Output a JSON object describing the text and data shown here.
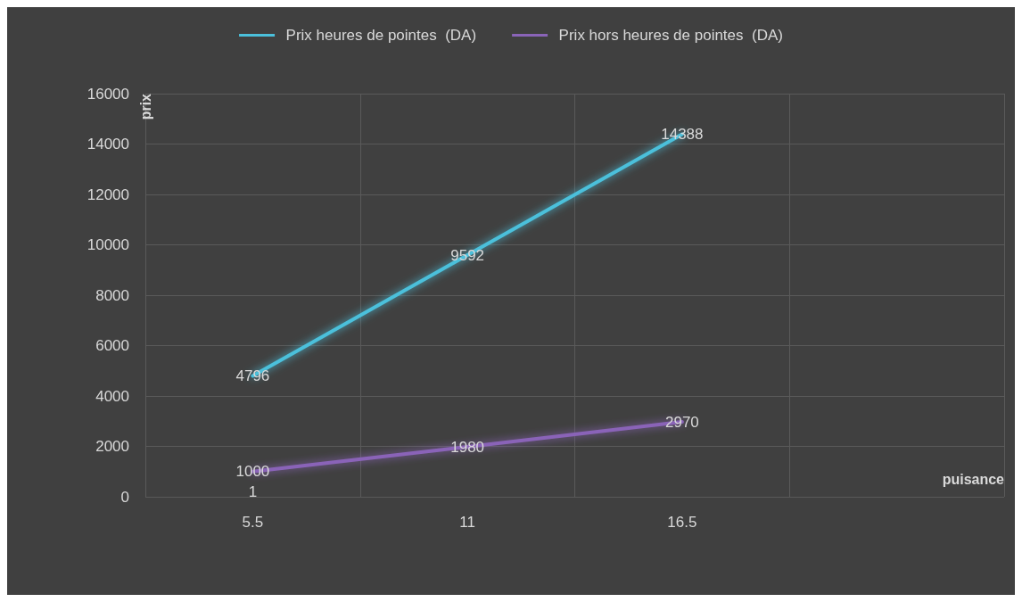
{
  "chart_data": {
    "type": "line",
    "xlabel": "puisance",
    "ylabel": "prix",
    "categories": [
      "1\n5.5",
      "11",
      "16.5",
      null
    ],
    "series": [
      {
        "name": "Prix heures de pointes  (DA)",
        "color": "#4bc0db",
        "values": [
          4796,
          9592,
          14388,
          null
        ]
      },
      {
        "name": "Prix hors heures de pointes  (DA)",
        "color": "#8a64b8",
        "values": [
          1000,
          1980,
          2970,
          null
        ]
      }
    ],
    "ylim": [
      0,
      16000
    ],
    "yticks": [
      0,
      2000,
      4000,
      6000,
      8000,
      10000,
      12000,
      14000,
      16000
    ],
    "grid": true,
    "legend": "top",
    "data_labels": true,
    "marker": "none",
    "line_style": "solid"
  }
}
